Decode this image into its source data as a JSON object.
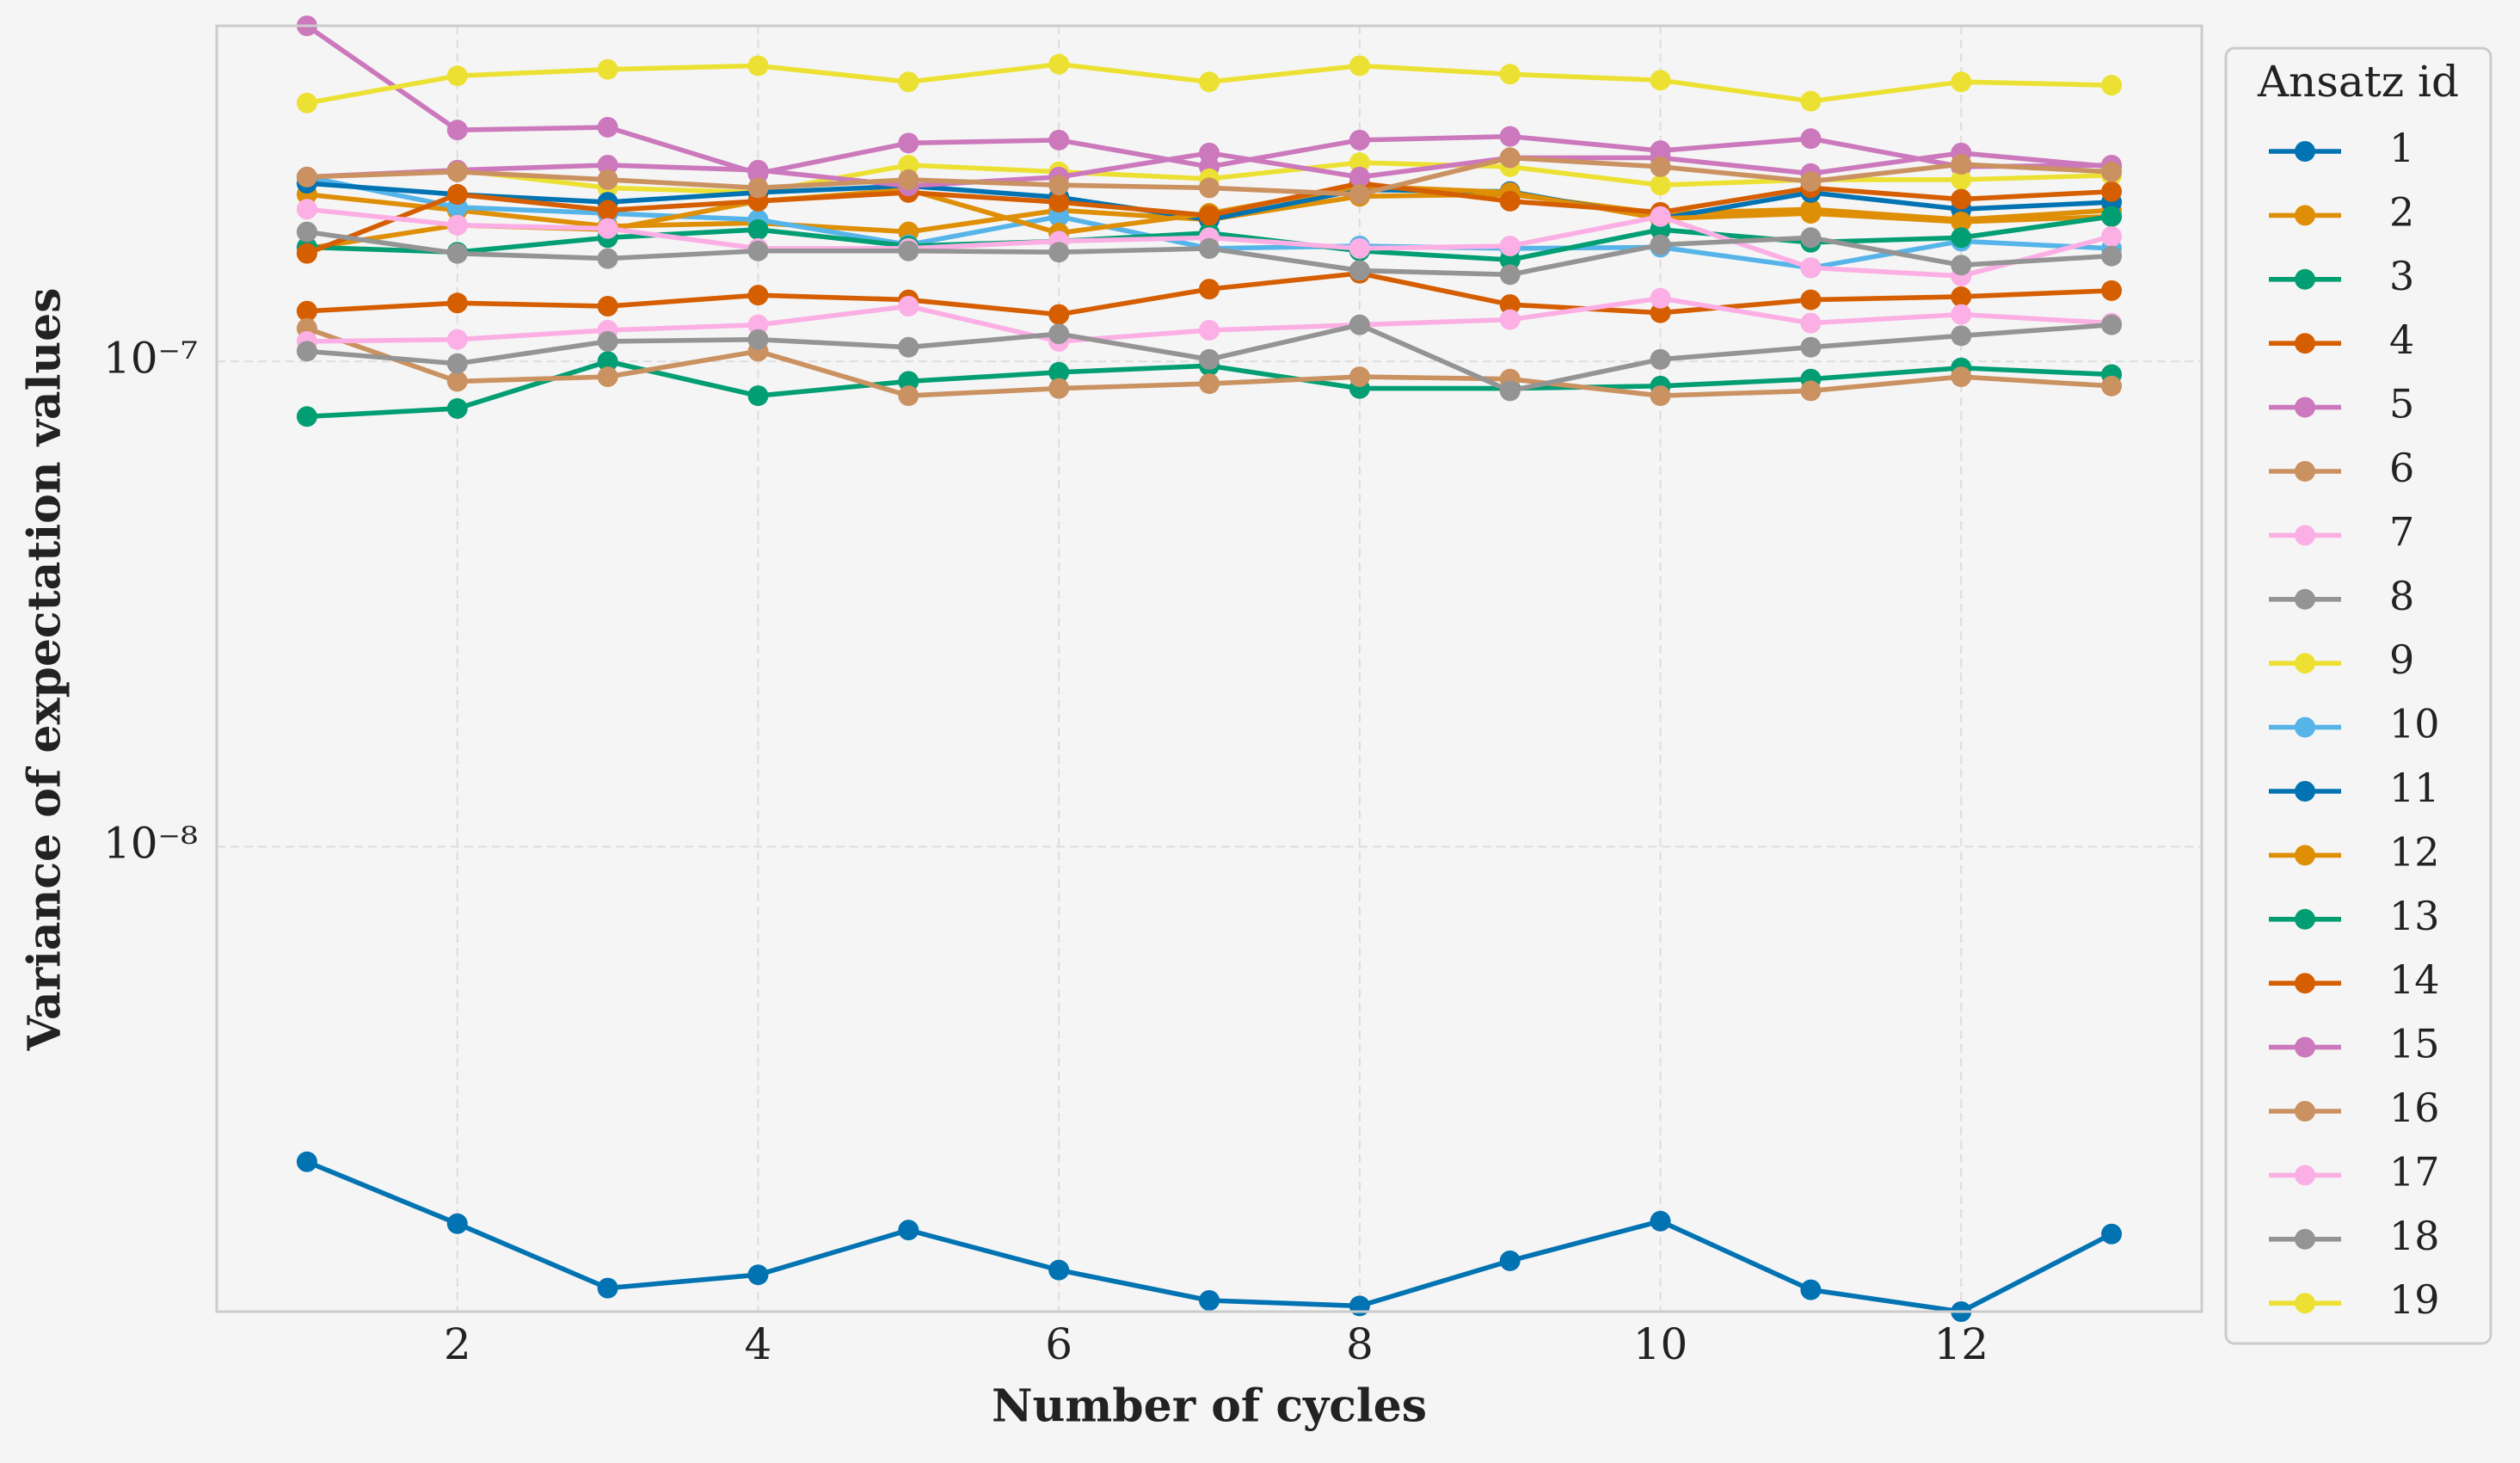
{
  "chart_data": {
    "type": "line",
    "xlabel": "Number of cycles",
    "ylabel": "Variance of expectation values",
    "x": [
      1,
      2,
      3,
      4,
      5,
      6,
      7,
      8,
      9,
      10,
      11,
      12,
      13
    ],
    "xlim": [
      0.4,
      13.6
    ],
    "xticks": [
      2,
      4,
      6,
      8,
      10,
      12
    ],
    "ylim": [
      1.1e-09,
      4.92e-07
    ],
    "yscale": "log",
    "yticks": [
      {
        "value": 1e-08,
        "label": "10⁻⁸"
      },
      {
        "value": 1e-07,
        "label": "10⁻⁷"
      }
    ],
    "grid": true,
    "legend_title": "Ansatz id",
    "legend_loc": "right",
    "series": [
      {
        "name": "1",
        "color": "#0173b2",
        "values": [
          2.24e-09,
          1.67e-09,
          1.23e-09,
          1.31e-09,
          1.62e-09,
          1.34e-09,
          1.16e-09,
          1.13e-09,
          1.4e-09,
          1.69e-09,
          1.22e-09,
          1.1e-09,
          1.59e-09
        ]
      },
      {
        "name": "2",
        "color": "#de8f05",
        "values": [
          2.21e-07,
          2.05e-07,
          1.9e-07,
          1.93e-07,
          1.85e-07,
          2.05e-07,
          1.96e-07,
          2.19e-07,
          2.21e-07,
          2.02e-07,
          2.06e-07,
          1.96e-07,
          2.05e-07
        ]
      },
      {
        "name": "3",
        "color": "#029e73",
        "values": [
          7.7e-08,
          8e-08,
          1e-07,
          8.5e-08,
          9.1e-08,
          9.5e-08,
          9.8e-08,
          8.8e-08,
          8.8e-08,
          8.9e-08,
          9.2e-08,
          9.7e-08,
          9.4e-08
        ]
      },
      {
        "name": "4",
        "color": "#d55e00",
        "values": [
          1.27e-07,
          1.32e-07,
          1.3e-07,
          1.37e-07,
          1.34e-07,
          1.25e-07,
          1.41e-07,
          1.52e-07,
          1.31e-07,
          1.26e-07,
          1.34e-07,
          1.36e-07,
          1.4e-07
        ]
      },
      {
        "name": "5",
        "color": "#cc78bc",
        "values": [
          4.92e-07,
          3e-07,
          3.04e-07,
          2.44e-07,
          2.82e-07,
          2.86e-07,
          2.52e-07,
          2.86e-07,
          2.91e-07,
          2.72e-07,
          2.88e-07,
          2.52e-07,
          2.54e-07
        ]
      },
      {
        "name": "6",
        "color": "#ca9161",
        "values": [
          1.17e-07,
          9.1e-08,
          9.3e-08,
          1.05e-07,
          8.5e-08,
          8.8e-08,
          9e-08,
          9.3e-08,
          9.2e-08,
          8.5e-08,
          8.7e-08,
          9.3e-08,
          8.9e-08
        ]
      },
      {
        "name": "7",
        "color": "#fbafe4",
        "values": [
          1.1e-07,
          1.11e-07,
          1.16e-07,
          1.19e-07,
          1.3e-07,
          1.1e-07,
          1.16e-07,
          1.19e-07,
          1.22e-07,
          1.35e-07,
          1.2e-07,
          1.25e-07,
          1.2e-07
        ]
      },
      {
        "name": "8",
        "color": "#949494",
        "values": [
          1.05e-07,
          9.9e-08,
          1.1e-07,
          1.11e-07,
          1.07e-07,
          1.14e-07,
          1.01e-07,
          1.19e-07,
          8.7e-08,
          1.01e-07,
          1.07e-07,
          1.13e-07,
          1.19e-07
        ]
      },
      {
        "name": "9",
        "color": "#ece133",
        "values": [
          2.4e-07,
          2.48e-07,
          2.28e-07,
          2.23e-07,
          2.54e-07,
          2.46e-07,
          2.38e-07,
          2.57e-07,
          2.52e-07,
          2.31e-07,
          2.37e-07,
          2.37e-07,
          2.42e-07
        ]
      },
      {
        "name": "10",
        "color": "#56b4e9",
        "values": [
          2.4e-07,
          2.08e-07,
          2.02e-07,
          1.96e-07,
          1.74e-07,
          1.99e-07,
          1.71e-07,
          1.73e-07,
          1.71e-07,
          1.72e-07,
          1.56e-07,
          1.77e-07,
          1.71e-07
        ]
      },
      {
        "name": "11",
        "color": "#0173b2",
        "values": [
          2.33e-07,
          2.21e-07,
          2.13e-07,
          2.23e-07,
          2.3e-07,
          2.18e-07,
          1.96e-07,
          2.26e-07,
          2.24e-07,
          1.97e-07,
          2.23e-07,
          2.06e-07,
          2.13e-07
        ]
      },
      {
        "name": "12",
        "color": "#de8f05",
        "values": [
          1.71e-07,
          1.91e-07,
          1.87e-07,
          2.14e-07,
          2.26e-07,
          1.84e-07,
          2.02e-07,
          2.3e-07,
          2.23e-07,
          1.97e-07,
          2.02e-07,
          1.94e-07,
          1.99e-07
        ]
      },
      {
        "name": "13",
        "color": "#029e73",
        "values": [
          1.72e-07,
          1.68e-07,
          1.8e-07,
          1.87e-07,
          1.73e-07,
          1.77e-07,
          1.84e-07,
          1.69e-07,
          1.62e-07,
          1.87e-07,
          1.76e-07,
          1.8e-07,
          1.99e-07
        ]
      },
      {
        "name": "14",
        "color": "#d55e00",
        "values": [
          1.67e-07,
          2.21e-07,
          2.05e-07,
          2.14e-07,
          2.23e-07,
          2.13e-07,
          2e-07,
          2.33e-07,
          2.14e-07,
          2.03e-07,
          2.28e-07,
          2.16e-07,
          2.24e-07
        ]
      },
      {
        "name": "15",
        "color": "#cc78bc",
        "values": [
          2.4e-07,
          2.48e-07,
          2.54e-07,
          2.48e-07,
          2.3e-07,
          2.4e-07,
          2.69e-07,
          2.4e-07,
          2.63e-07,
          2.63e-07,
          2.44e-07,
          2.69e-07,
          2.52e-07
        ]
      },
      {
        "name": "16",
        "color": "#ca9161",
        "values": [
          2.4e-07,
          2.46e-07,
          2.37e-07,
          2.28e-07,
          2.37e-07,
          2.31e-07,
          2.28e-07,
          2.21e-07,
          2.63e-07,
          2.52e-07,
          2.35e-07,
          2.55e-07,
          2.46e-07
        ]
      },
      {
        "name": "17",
        "color": "#fbafe4",
        "values": [
          2.06e-07,
          1.91e-07,
          1.88e-07,
          1.71e-07,
          1.71e-07,
          1.77e-07,
          1.8e-07,
          1.71e-07,
          1.73e-07,
          1.99e-07,
          1.56e-07,
          1.5e-07,
          1.81e-07
        ]
      },
      {
        "name": "18",
        "color": "#949494",
        "values": [
          1.85e-07,
          1.67e-07,
          1.63e-07,
          1.69e-07,
          1.69e-07,
          1.68e-07,
          1.71e-07,
          1.54e-07,
          1.51e-07,
          1.74e-07,
          1.8e-07,
          1.58e-07,
          1.65e-07
        ]
      },
      {
        "name": "19",
        "color": "#ece133",
        "values": [
          3.41e-07,
          3.88e-07,
          4e-07,
          4.07e-07,
          3.77e-07,
          4.1e-07,
          3.77e-07,
          4.07e-07,
          3.91e-07,
          3.8e-07,
          3.44e-07,
          3.77e-07,
          3.71e-07
        ]
      }
    ]
  }
}
